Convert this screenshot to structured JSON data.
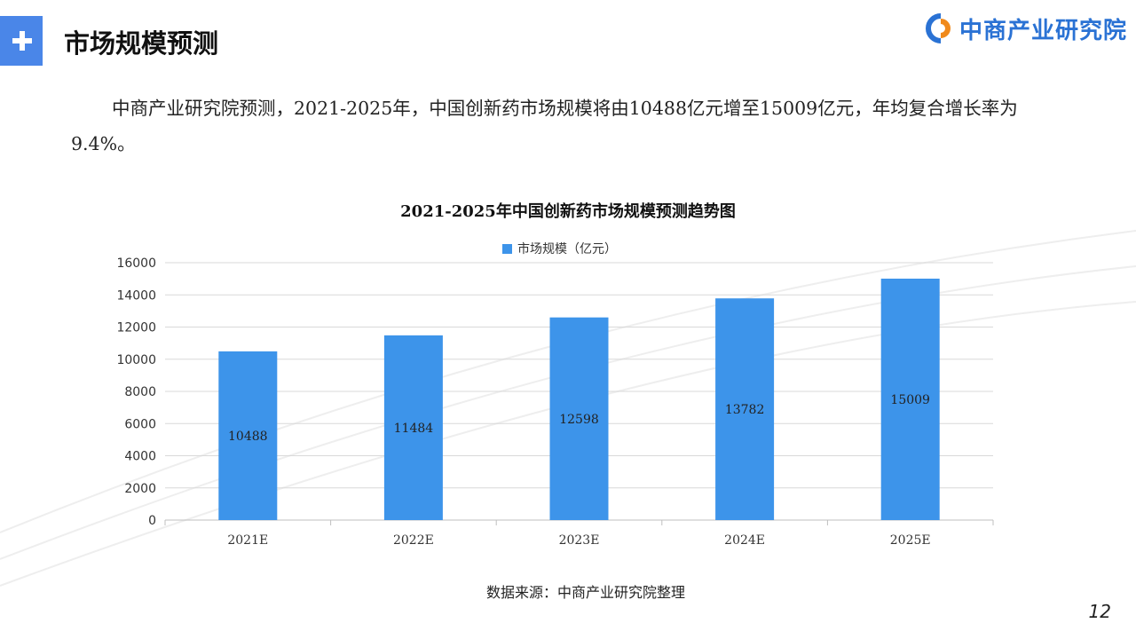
{
  "header": {
    "title": "市场规模预测",
    "logo_text": "中商产业研究院"
  },
  "intro_text": "中商产业研究院预测，2021-2025年，中国创新药市场规模将由10488亿元增至15009亿元，年均复合增长率为9.4%。",
  "colors": {
    "accent": "#4a86e8",
    "bar": "#3d94ea",
    "logo": "#2a72d4"
  },
  "chart_data": {
    "type": "bar",
    "title": "2021-2025年中国创新药市场规模预测趋势图",
    "categories": [
      "2021E",
      "2022E",
      "2023E",
      "2024E",
      "2025E"
    ],
    "series": [
      {
        "name": "市场规模（亿元）",
        "values": [
          10488,
          11484,
          12598,
          13782,
          15009
        ]
      }
    ],
    "ylim": [
      0,
      16000
    ],
    "yticks": [
      0,
      2000,
      4000,
      6000,
      8000,
      10000,
      12000,
      14000,
      16000
    ],
    "grid": true,
    "legend_position": "top-center",
    "data_labels": true
  },
  "source": "数据来源：中商产业研究院整理",
  "page_number": "12"
}
